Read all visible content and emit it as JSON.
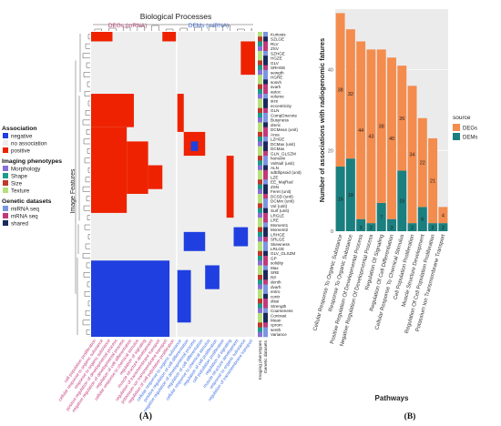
{
  "panel_labels": {
    "a": "(A)",
    "b": "(B)"
  },
  "chart_data": [
    {
      "type": "heatmap",
      "title": "Biological Processes",
      "group_labels": [
        "DEGs (mRNA)",
        "DEMs (miRNA)"
      ],
      "ylabel": "Image Features",
      "legend": {
        "association_title": "Association",
        "association_items": [
          {
            "label": "negative",
            "color": "#1f3fe0"
          },
          {
            "label": "no association",
            "color": "#eeeeee"
          },
          {
            "label": "positive",
            "color": "#ee2200"
          }
        ],
        "phenotype_title": "Imaging phenotypes",
        "phenotype_items": [
          {
            "label": "Morphology",
            "color": "#8a6fd6"
          },
          {
            "label": "Shape",
            "color": "#1e9c8a"
          },
          {
            "label": "Size",
            "color": "#c0392b"
          },
          {
            "label": "Texture",
            "color": "#b6e07a"
          }
        ],
        "dataset_title": "Genetic datasets",
        "dataset_items": [
          {
            "label": "miRNA seq",
            "color": "#7b95e0"
          },
          {
            "label": "mRNA seq",
            "color": "#c0397a"
          },
          {
            "label": "shared",
            "color": "#1a2a5a"
          }
        ]
      },
      "side_bar_labels": [
        "Imaging phenotypes",
        "Genetic datasets"
      ],
      "row_labels": [
        "Kurtosis",
        "SZLGE",
        "RLV",
        "ZSV",
        "SZHGE",
        "HGZE",
        "GLV",
        "SRHGE",
        "sewgth",
        "HGRE",
        "sosvh",
        "svarh",
        "autoc",
        "volume",
        "size",
        "eccentricity",
        "GLN",
        "CompDiscrete",
        "Busyness",
        "dmric",
        "DCMean (unit)",
        "Area",
        "LZHGE",
        "DCMax (unit)",
        "DCMax",
        "GLN_GLSZM",
        "homolm",
        "VolNull (unit)",
        "ALN",
        "sdEllipsoid (unit)",
        "LZE",
        "EE_MajRad",
        "ZSN",
        "Feret (unit)",
        "DCSD (unit)",
        "DCMin (unit)",
        "Vol (unit)",
        "Surf (unit)",
        "LRGLE",
        "LRE",
        "Moment1",
        "Moment2",
        "LRHGE",
        "SRLGE",
        "Skewness",
        "LRLGE",
        "GLV_GLSZM",
        "GP",
        "solidity",
        "Max",
        "SRE",
        "RP",
        "denth",
        "dvarh",
        "entro",
        "contr",
        "dissi",
        "Strength",
        "Coarseness",
        "Contrast",
        "Mean",
        "cprom",
        "senth",
        "Variance"
      ],
      "column_labels": [
        "cell population proliferation",
        "cellular response to organic substance",
        "response to organic substance",
        "positive regulation of developmental process",
        "negative regulation of developmental process",
        "regulation of cell differentiation",
        "cellular response to chemical stimulus",
        "regulation of signaling",
        "muscle structure development",
        "regulation of transmembrane transport",
        "potassium ion transmembrane transport",
        "regulation of cell population proliferation",
        "cellular response to organic substance",
        "positive regulation of cell differentiation",
        "negative regulation of developmental process",
        "regulation of cell differentiation",
        "cellular response to chemical stimulus",
        "regulation of cell proliferation",
        "cell population proliferation",
        "regulation of signaling",
        "muscle structure development",
        "response to organic substance",
        "regulation of transmembrane transport"
      ],
      "cell_blocks": [
        {
          "value": "positive",
          "rows": [
            0,
            1
          ],
          "cols": [
            0,
            2
          ]
        },
        {
          "value": "positive",
          "rows": [
            0,
            1
          ],
          "cols": [
            10,
            11
          ]
        },
        {
          "value": "positive",
          "rows": [
            2,
            8
          ],
          "cols": [
            21,
            22
          ]
        },
        {
          "value": "positive",
          "rows": [
            13,
            19
          ],
          "cols": [
            0,
            5
          ]
        },
        {
          "value": "positive",
          "rows": [
            13,
            20
          ],
          "cols": [
            12,
            12
          ]
        },
        {
          "value": "positive",
          "rows": [
            20,
            37
          ],
          "cols": [
            0,
            4
          ]
        },
        {
          "value": "positive",
          "rows": [
            23,
            33
          ],
          "cols": [
            5,
            7
          ]
        },
        {
          "value": "positive",
          "rows": [
            21,
            25
          ],
          "cols": [
            13,
            15
          ]
        },
        {
          "value": "positive",
          "rows": [
            26,
            38
          ],
          "cols": [
            19,
            19
          ]
        },
        {
          "value": "positive",
          "rows": [
            28,
            32
          ],
          "cols": [
            8,
            9
          ]
        },
        {
          "value": "negative",
          "rows": [
            23,
            24
          ],
          "cols": [
            14,
            14
          ]
        },
        {
          "value": "negative",
          "rows": [
            42,
            45
          ],
          "cols": [
            13,
            15
          ]
        },
        {
          "value": "negative",
          "rows": [
            41,
            44
          ],
          "cols": [
            20,
            21
          ]
        },
        {
          "value": "negative",
          "rows": [
            48,
            63
          ],
          "cols": [
            0,
            10
          ]
        },
        {
          "value": "negative",
          "rows": [
            50,
            60
          ],
          "cols": [
            12,
            13
          ]
        },
        {
          "value": "negative",
          "rows": [
            49,
            53
          ],
          "cols": [
            16,
            17
          ]
        }
      ]
    },
    {
      "type": "bar",
      "stacked": true,
      "categories": [
        "Cellular Response To Organic Substance",
        "Response To Organic Substance",
        "Positive Regulation Of Developmental Process",
        "Negative Regulation Of Developmental Process",
        "Regulation Of Signaling",
        "Regulation Of Cell Differentiation",
        "Cellular Response To Chemical Stimulus",
        "Cell Population Proliferation",
        "Muscle Structure Development",
        "Regulation Of Cell Population Proliferation",
        "Potassium Ion Transmembrane Transport"
      ],
      "series": [
        {
          "name": "DEMs",
          "color": "#1a7f7f",
          "values": [
            16,
            18,
            3,
            2,
            7,
            3,
            15,
            2,
            6,
            2,
            2
          ]
        },
        {
          "name": "DEGs",
          "color": "#f48c4e",
          "values": [
            38,
            32,
            44,
            43,
            38,
            40,
            26,
            34,
            22,
            21,
            4
          ]
        }
      ],
      "xlabel": "Pathways",
      "ylabel": "Number of associations with radiogenomic fatures",
      "ylim": [
        0,
        55
      ],
      "yticks": [
        0,
        20,
        40
      ],
      "grid": true,
      "legend_title": "source",
      "legend_position": "right"
    }
  ]
}
